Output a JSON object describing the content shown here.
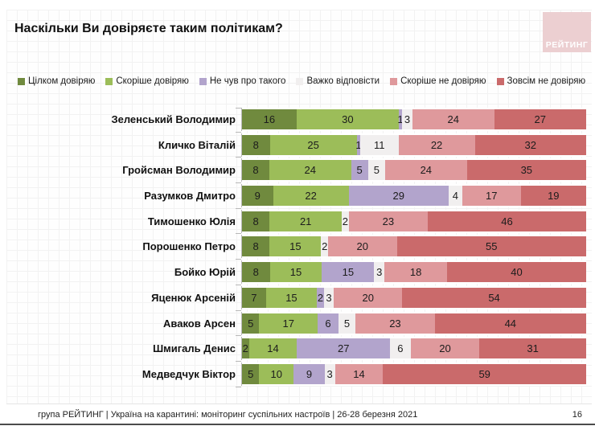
{
  "title": "Наскільки Ви довіряєте таким політикам?",
  "logo": {
    "text": "РЕЙТИНГ",
    "color": "#eccfd1"
  },
  "footer": {
    "source": "група РЕЙТИНГ | Україна на карантині: моніторинг суспільних настроїв | 26-28 березня 2021",
    "page": "16"
  },
  "chart_data": {
    "type": "bar",
    "stacked": true,
    "orientation": "horizontal",
    "unit": "%",
    "legend_position": "top",
    "value_labels": "inside",
    "categories": [
      "Зеленський Володимир",
      "Кличко Віталій",
      "Гройсман Володимир",
      "Разумков Дмитро",
      "Тимошенко Юлія",
      "Порошенко Петро",
      "Бойко Юрій",
      "Яценюк Арсеній",
      "Аваков Арсен",
      "Шмигаль Денис",
      "Медведчук Віктор"
    ],
    "series": [
      {
        "name": "Цілком довіряю",
        "color": "#708a3e",
        "values": [
          16,
          8,
          8,
          9,
          8,
          8,
          8,
          7,
          5,
          2,
          5
        ]
      },
      {
        "name": "Скоріше довіряю",
        "color": "#9cbd59",
        "values": [
          30,
          25,
          24,
          22,
          21,
          15,
          15,
          15,
          17,
          14,
          10
        ]
      },
      {
        "name": "Не чув про такого",
        "color": "#b2a4cc",
        "values": [
          1,
          1,
          5,
          29,
          0,
          0,
          15,
          2,
          6,
          27,
          9
        ]
      },
      {
        "name": "Важко відповісти",
        "color": "#f1efef",
        "values": [
          3,
          11,
          5,
          4,
          2,
          2,
          3,
          3,
          5,
          6,
          3
        ]
      },
      {
        "name": "Скоріше не довіряю",
        "color": "#df999c",
        "values": [
          24,
          22,
          24,
          17,
          23,
          20,
          18,
          20,
          23,
          20,
          14
        ]
      },
      {
        "name": "Зовсім не довіряю",
        "color": "#ca6a6b",
        "values": [
          27,
          32,
          35,
          19,
          46,
          55,
          40,
          54,
          44,
          31,
          59
        ]
      }
    ]
  }
}
